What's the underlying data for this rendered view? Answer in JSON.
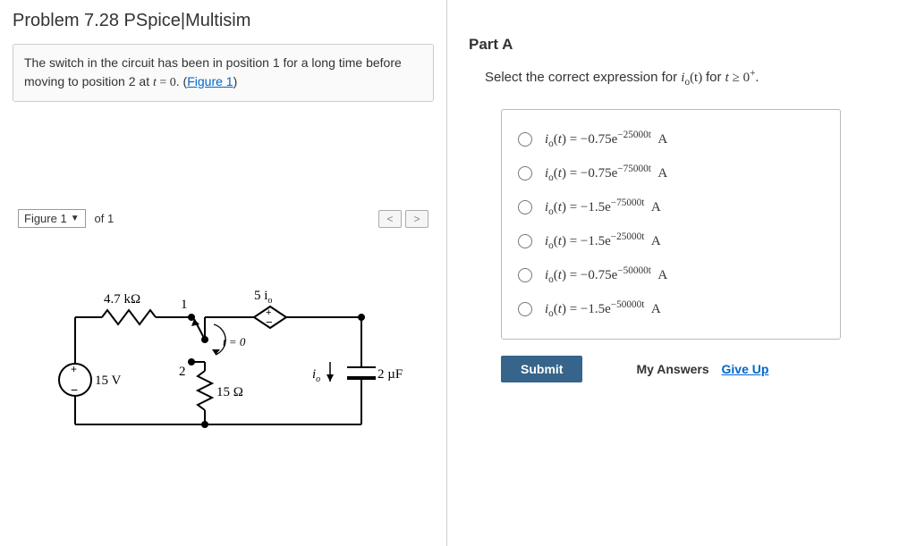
{
  "title": "Problem 7.28 PSpice|Multisim",
  "problem_text_prefix": "The switch in the circuit has been in position 1 for a long time before moving to position 2 at ",
  "problem_text_eq": "t = 0",
  "problem_text_suffix": ". (",
  "figure_link": "Figure 1",
  "problem_text_end": ")",
  "figure_select_label": "Figure 1",
  "of_text": "of 1",
  "nav_prev": "<",
  "nav_next": ">",
  "circuit": {
    "R1": "4.7 kΩ",
    "pos1": "1",
    "pos2": "2",
    "switch_label": "t = 0",
    "ccvs": "5 i",
    "ccvs_sub": "o",
    "Vsrc": "15 V",
    "R2": "15 Ω",
    "io": "i",
    "io_sub": "o",
    "Cap": "2 µF",
    "stroke": "#000000",
    "bg": "#ffffff"
  },
  "partA": {
    "title": "Part A",
    "prompt_prefix": "Select the correct expression for ",
    "prompt_var": "i",
    "prompt_sub": "o",
    "prompt_arg": "(t)",
    "prompt_mid": " for ",
    "prompt_cond": "t ≥ 0",
    "prompt_sup": "+",
    "prompt_end": "."
  },
  "options": [
    {
      "coef": "−0.75",
      "exp": "−25000t"
    },
    {
      "coef": "−0.75",
      "exp": "−75000t"
    },
    {
      "coef": "−1.5",
      "exp": "−75000t"
    },
    {
      "coef": "−1.5",
      "exp": "−25000t"
    },
    {
      "coef": "−0.75",
      "exp": "−50000t"
    },
    {
      "coef": "−1.5",
      "exp": "−50000t"
    }
  ],
  "submit_label": "Submit",
  "my_answers": "My Answers",
  "give_up": "Give Up"
}
